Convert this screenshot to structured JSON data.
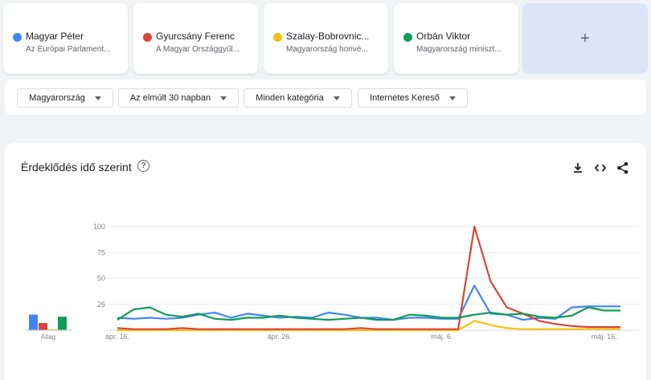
{
  "terms": [
    {
      "name": "Magyar Péter",
      "desc": "Az Európai Parlament...",
      "color": "#4285f4"
    },
    {
      "name": "Gyurcsány Ferenc",
      "desc": "A Magyar Országgyűl...",
      "color": "#db4437"
    },
    {
      "name": "Szalay-Bobrovnic...",
      "desc": "Magyarország honvé...",
      "color": "#f4c20d"
    },
    {
      "name": "Orbán Viktor",
      "desc": "Magyarország miniszt...",
      "color": "#0f9d58"
    }
  ],
  "add_label": "+",
  "filters": {
    "region": "Magyarország",
    "period": "Az elmúlt 30 napban",
    "category": "Minden kategória",
    "search_type": "Internetes Kereső"
  },
  "card": {
    "title": "Érdeklődés idő szerint",
    "help": "?"
  },
  "chart_data": {
    "type": "line",
    "title": "Érdeklődés idő szerint",
    "ylim": [
      0,
      100
    ],
    "yticks": [
      "100",
      "75",
      "50",
      "25"
    ],
    "xtick_labels": [
      "ápr. 16.",
      "ápr. 26.",
      "máj. 6.",
      "máj. 16."
    ],
    "x": [
      "ápr. 16.",
      "ápr. 17.",
      "ápr. 18.",
      "ápr. 19.",
      "ápr. 20.",
      "ápr. 21.",
      "ápr. 22.",
      "ápr. 23.",
      "ápr. 24.",
      "ápr. 25.",
      "ápr. 26.",
      "ápr. 27.",
      "ápr. 28.",
      "ápr. 29.",
      "ápr. 30.",
      "máj. 1.",
      "máj. 2.",
      "máj. 3.",
      "máj. 4.",
      "máj. 5.",
      "máj. 6.",
      "máj. 7.",
      "máj. 8.",
      "máj. 9.",
      "máj. 10.",
      "máj. 11.",
      "máj. 12.",
      "máj. 13.",
      "máj. 14.",
      "máj. 15.",
      "máj. 16.",
      "máj. 17."
    ],
    "series": [
      {
        "name": "Magyar Péter",
        "color": "#4285f4",
        "values": [
          12,
          11,
          12,
          11,
          12,
          15,
          17,
          12,
          16,
          14,
          12,
          13,
          12,
          17,
          15,
          12,
          12,
          10,
          12,
          12,
          11,
          11,
          43,
          16,
          15,
          10,
          12,
          11,
          22,
          23,
          23,
          23
        ]
      },
      {
        "name": "Gyurcsány Ferenc",
        "color": "#db4437",
        "values": [
          2,
          1,
          1,
          1,
          2,
          1,
          1,
          1,
          1,
          1,
          1,
          1,
          1,
          1,
          1,
          2,
          1,
          1,
          1,
          1,
          1,
          1,
          100,
          47,
          22,
          16,
          9,
          6,
          4,
          3,
          3,
          3
        ]
      },
      {
        "name": "Szalay-Bobrovniczky Kristóf",
        "color": "#f4c20d",
        "values": [
          0,
          0,
          0,
          0,
          0,
          0,
          0,
          0,
          0,
          0,
          0,
          0,
          0,
          0,
          0,
          0,
          0,
          0,
          0,
          0,
          0,
          0,
          9,
          5,
          2,
          1,
          1,
          1,
          1,
          1,
          1,
          1
        ]
      },
      {
        "name": "Orbán Viktor",
        "color": "#0f9d58",
        "values": [
          10,
          20,
          22,
          15,
          13,
          16,
          11,
          10,
          12,
          12,
          14,
          12,
          11,
          10,
          11,
          12,
          10,
          10,
          15,
          14,
          12,
          12,
          15,
          17,
          15,
          16,
          13,
          12,
          14,
          22,
          19,
          19
        ]
      }
    ],
    "averages": {
      "label": "Átlag",
      "values": [
        {
          "name": "Magyar Péter",
          "value": 15,
          "color": "#4285f4"
        },
        {
          "name": "Gyurcsány Ferenc",
          "value": 7,
          "color": "#db4437"
        },
        {
          "name": "Szalay-Bobrovniczky Kristóf",
          "value": 1,
          "color": "#f4c20d"
        },
        {
          "name": "Orbán Viktor",
          "value": 13,
          "color": "#0f9d58"
        }
      ]
    },
    "grid": true,
    "legend": "top"
  }
}
